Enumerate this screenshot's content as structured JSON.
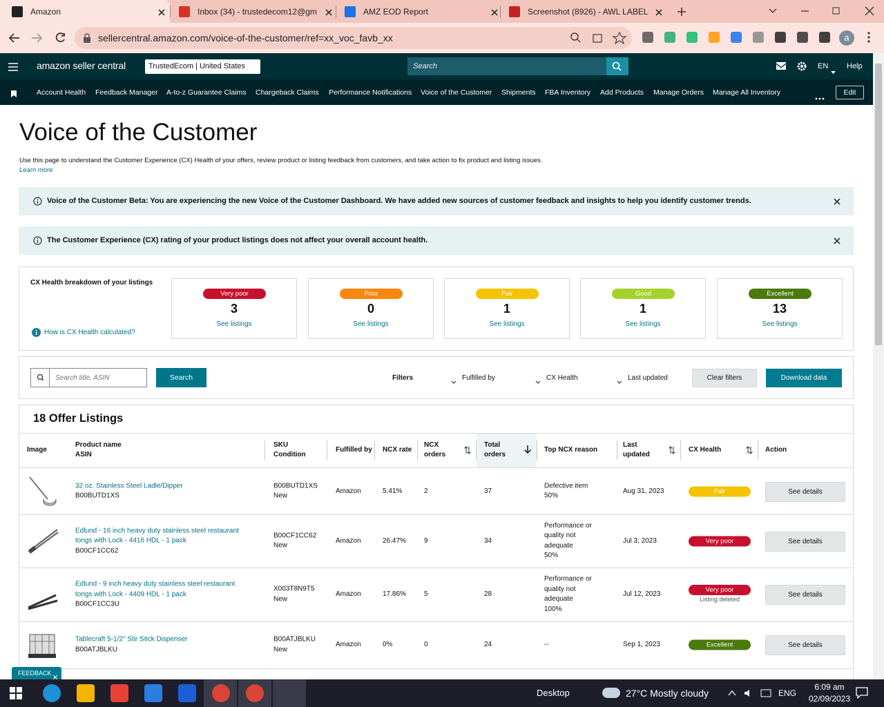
{
  "browser": {
    "tabs": [
      "Amazon",
      "Inbox (34) - trustedecom12@gm",
      "AMZ EOD Report",
      "Screenshot (8926) - AWL LABEL"
    ],
    "url": "sellercentral.amazon.com/voice-of-the-customer/ref=xx_voc_favb_xx",
    "profile": "a"
  },
  "header": {
    "logo": "amazon seller central",
    "store": "TrustedEcom | United States",
    "search": "Search",
    "language": "EN",
    "help": "Help"
  },
  "nav": {
    "items": [
      "Account Health",
      "Feedback Manager",
      "A-to-z Guarantee Claims",
      "Chargeback Claims",
      "Performance Notifications",
      "Voice of the Customer",
      "Shipments",
      "FBA Inventory",
      "Add Products",
      "Manage Orders",
      "Manage All Inventory"
    ],
    "edit": "Edit"
  },
  "page": {
    "title": "Voice of the Customer",
    "description": "Use this page to understand the Customer Experience (CX) Health of your offers, review product or listing feedback from customers, and take action to fix product and listing issues.",
    "learn_more": "Learn more"
  },
  "alerts": [
    "Voice of the Customer Beta: You are experiencing the new Voice of the Customer Dashboard. We have added new sources of customer feedback and insights to help you identify customer trends.",
    "The Customer Experience (CX) rating of your product listings does not affect your overall account health."
  ],
  "cx_health": {
    "title": "CX Health breakdown of your listings",
    "help_link": "How is CX Health calculated?",
    "cards": [
      {
        "label": "Very poor",
        "count": 3,
        "link": "See listings",
        "color": "#c8102e"
      },
      {
        "label": "Poor",
        "count": 0,
        "link": "See listings",
        "color": "#f7870f"
      },
      {
        "label": "Fair",
        "count": 1,
        "link": "See listings",
        "color": "#f5c300"
      },
      {
        "label": "Good",
        "count": 1,
        "link": "See listings",
        "color": "#a5d22a"
      },
      {
        "label": "Excellent",
        "count": 13,
        "link": "See listings",
        "color": "#4a7a0c"
      }
    ]
  },
  "toolbar": {
    "search_placeholder": "Search title, ASIN",
    "search_button": "Search",
    "filters_label": "Filters",
    "filters": [
      "Fulfilled by",
      "CX Health",
      "Last updated"
    ],
    "clear": "Clear filters",
    "download": "Download data"
  },
  "listings": {
    "title": "18 Offer Listings",
    "columns": [
      [
        "Image"
      ],
      [
        "Product name",
        "ASIN"
      ],
      [
        "SKU",
        "Condition"
      ],
      [
        "Fulfilled by"
      ],
      [
        "NCX rate"
      ],
      [
        "NCX",
        "orders"
      ],
      [
        "Total",
        "orders"
      ],
      [
        "Top NCX reason"
      ],
      [
        "Last",
        "updated"
      ],
      [
        "CX Health"
      ],
      [
        "Action"
      ]
    ],
    "rows": [
      {
        "name": "32 oz. Stainless Steel Ladle/Dipper",
        "asin": "B00BUTD1XS",
        "sku": "B00BUTD1XS",
        "condition": "New",
        "fulfilled_by": "Amazon",
        "ncx_rate": "5.41%",
        "ncx_orders": 2,
        "total_orders": 37,
        "reason": "Defective item",
        "reason_share": "50%",
        "last_updated": "Aug 31, 2023",
        "health": "Fair",
        "action": "See details"
      },
      {
        "name": "Edlund - 16 inch heavy duty stainless steel restaurant tongs with Lock - 4416 HDL - 1 pack",
        "asin": "B00CF1CC62",
        "sku": "B00CF1CC62",
        "condition": "New",
        "fulfilled_by": "Amazon",
        "ncx_rate": "26.47%",
        "ncx_orders": 9,
        "total_orders": 34,
        "reason": "Performance or quality not adequate",
        "reason_share": "50%",
        "last_updated": "Jul 3, 2023",
        "health": "Very poor",
        "action": "See details"
      },
      {
        "name": "Edlund - 9 inch heavy duty stainless steel restaurant tongs with Lock - 4409 HDL - 1 pack",
        "asin": "B00CF1CC3U",
        "sku": "X003T8N9T5",
        "condition": "New",
        "fulfilled_by": "Amazon",
        "ncx_rate": "17.86%",
        "ncx_orders": 5,
        "total_orders": 28,
        "reason": "Performance or quality not adequate",
        "reason_share": "100%",
        "last_updated": "Jul 12, 2023",
        "health": "Very poor",
        "health_note": "Listing deleted",
        "action": "See details"
      },
      {
        "name": "Tablecraft 5-1/2\" Stir Stick Dispenser",
        "asin": "B00ATJBLKU",
        "sku": "B00ATJBLKU",
        "condition": "New",
        "fulfilled_by": "Amazon",
        "ncx_rate": "0%",
        "ncx_orders": 0,
        "total_orders": 24,
        "reason": "--",
        "last_updated": "Sep 1, 2023",
        "health": "Excellent",
        "action": "See details"
      }
    ]
  },
  "feedback": "FEEDBACK",
  "taskbar": {
    "desktop": "Desktop",
    "weather": "27°C Mostly cloudy",
    "language": "ENG",
    "time": "6:09 am",
    "date": "02/09/2023"
  }
}
